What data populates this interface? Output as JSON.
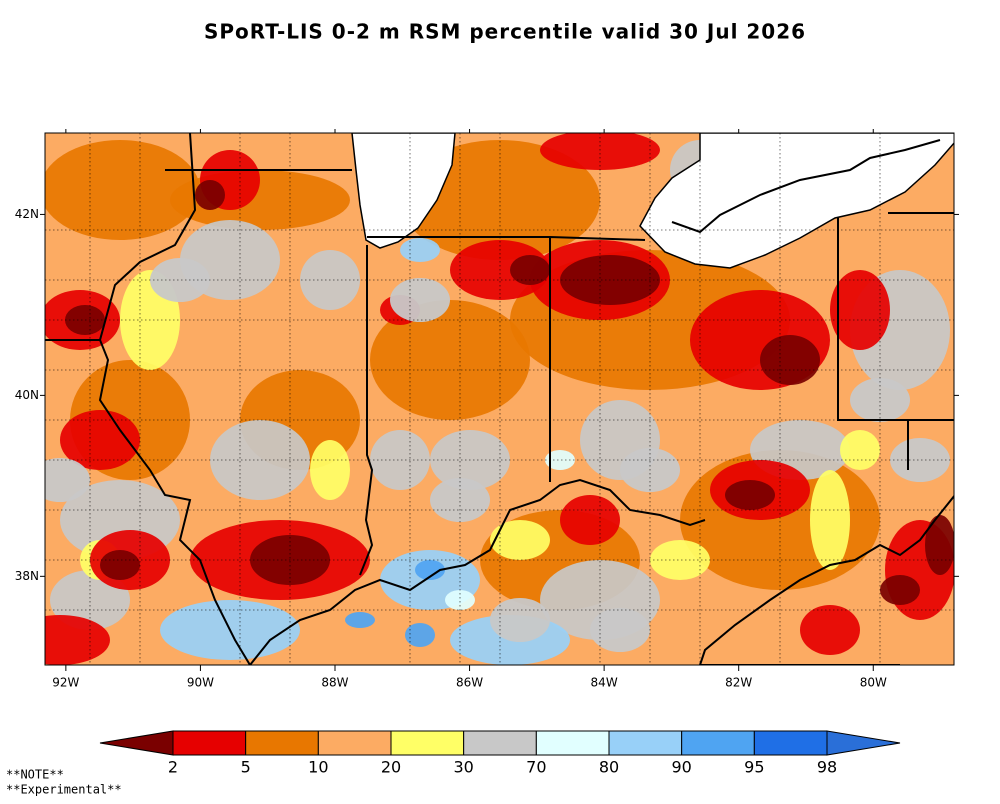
{
  "header": {
    "title": "SPoRT-LIS 0-2 m RSM percentile valid 30 Jul 2026"
  },
  "map": {
    "lon_range": [
      -92.31,
      -78.8
    ],
    "lat_range": [
      37.02,
      42.9
    ],
    "lon_ticks": [
      {
        "value": -92,
        "label": "92W"
      },
      {
        "value": -90,
        "label": "90W"
      },
      {
        "value": -88,
        "label": "88W"
      },
      {
        "value": -86,
        "label": "86W"
      },
      {
        "value": -84,
        "label": "84W"
      },
      {
        "value": -82,
        "label": "82W"
      },
      {
        "value": -80,
        "label": "80W"
      }
    ],
    "lat_ticks": [
      {
        "value": 42,
        "label": "42N"
      },
      {
        "value": 40,
        "label": "40N"
      },
      {
        "value": 38,
        "label": "38N"
      }
    ]
  },
  "colorbar": {
    "colors": [
      "#7a0000",
      "#e60000",
      "#e87700",
      "#fcab63",
      "#ffff66",
      "#c8c8c8",
      "#e1ffff",
      "#98d0f8",
      "#4fa4f2",
      "#1f6fe6",
      "#2a6fd8"
    ],
    "ticks": [
      2,
      5,
      10,
      20,
      30,
      70,
      80,
      90,
      95,
      98
    ]
  },
  "notes": [
    "**NOTE**",
    "**Experimental**"
  ]
}
